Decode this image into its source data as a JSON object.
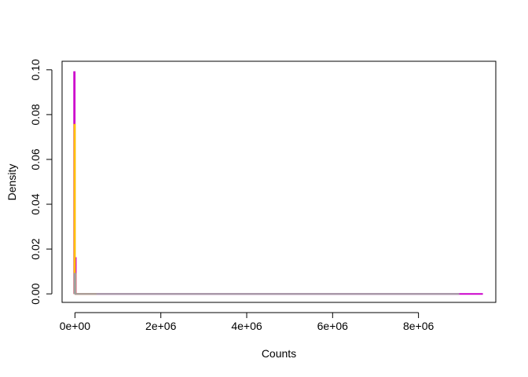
{
  "chart_data": {
    "type": "line",
    "title": "",
    "xlabel": "Counts",
    "ylabel": "Density",
    "xlim": [
      -300000,
      9800000
    ],
    "ylim": [
      -0.0038,
      0.1038
    ],
    "x_ticks": [
      {
        "value": 0,
        "label": "0e+00"
      },
      {
        "value": 2000000,
        "label": "2e+06"
      },
      {
        "value": 4000000,
        "label": "4e+06"
      },
      {
        "value": 6000000,
        "label": "6e+06"
      },
      {
        "value": 8000000,
        "label": "8e+06"
      }
    ],
    "y_ticks": [
      {
        "value": 0.0,
        "label": "0.00"
      },
      {
        "value": 0.02,
        "label": "0.02"
      },
      {
        "value": 0.04,
        "label": "0.04"
      },
      {
        "value": 0.06,
        "label": "0.06"
      },
      {
        "value": 0.08,
        "label": "0.08"
      },
      {
        "value": 0.1,
        "label": "0.10"
      }
    ],
    "grid": false,
    "series": [
      {
        "color": "#CC00CC",
        "points": [
          [
            -20000,
            0
          ],
          [
            -20000,
            0.099
          ],
          [
            -5000,
            0.099
          ],
          [
            -5000,
            0.016
          ],
          [
            20000,
            0.016
          ],
          [
            20000,
            0
          ],
          [
            8900000,
            0
          ],
          [
            9500000,
            0
          ]
        ]
      },
      {
        "color": "#FFC000",
        "points": [
          [
            -15000,
            0
          ],
          [
            -15000,
            0.0755
          ],
          [
            0,
            0.0755
          ],
          [
            0,
            0.009
          ],
          [
            15000,
            0.009
          ],
          [
            15000,
            0
          ],
          [
            500000,
            0
          ]
        ]
      },
      {
        "color": "#9E9E9E",
        "points": [
          [
            -10000,
            0
          ],
          [
            -10000,
            0.009
          ],
          [
            10000,
            0.009
          ],
          [
            10000,
            0
          ],
          [
            8950000,
            0
          ]
        ]
      }
    ]
  }
}
